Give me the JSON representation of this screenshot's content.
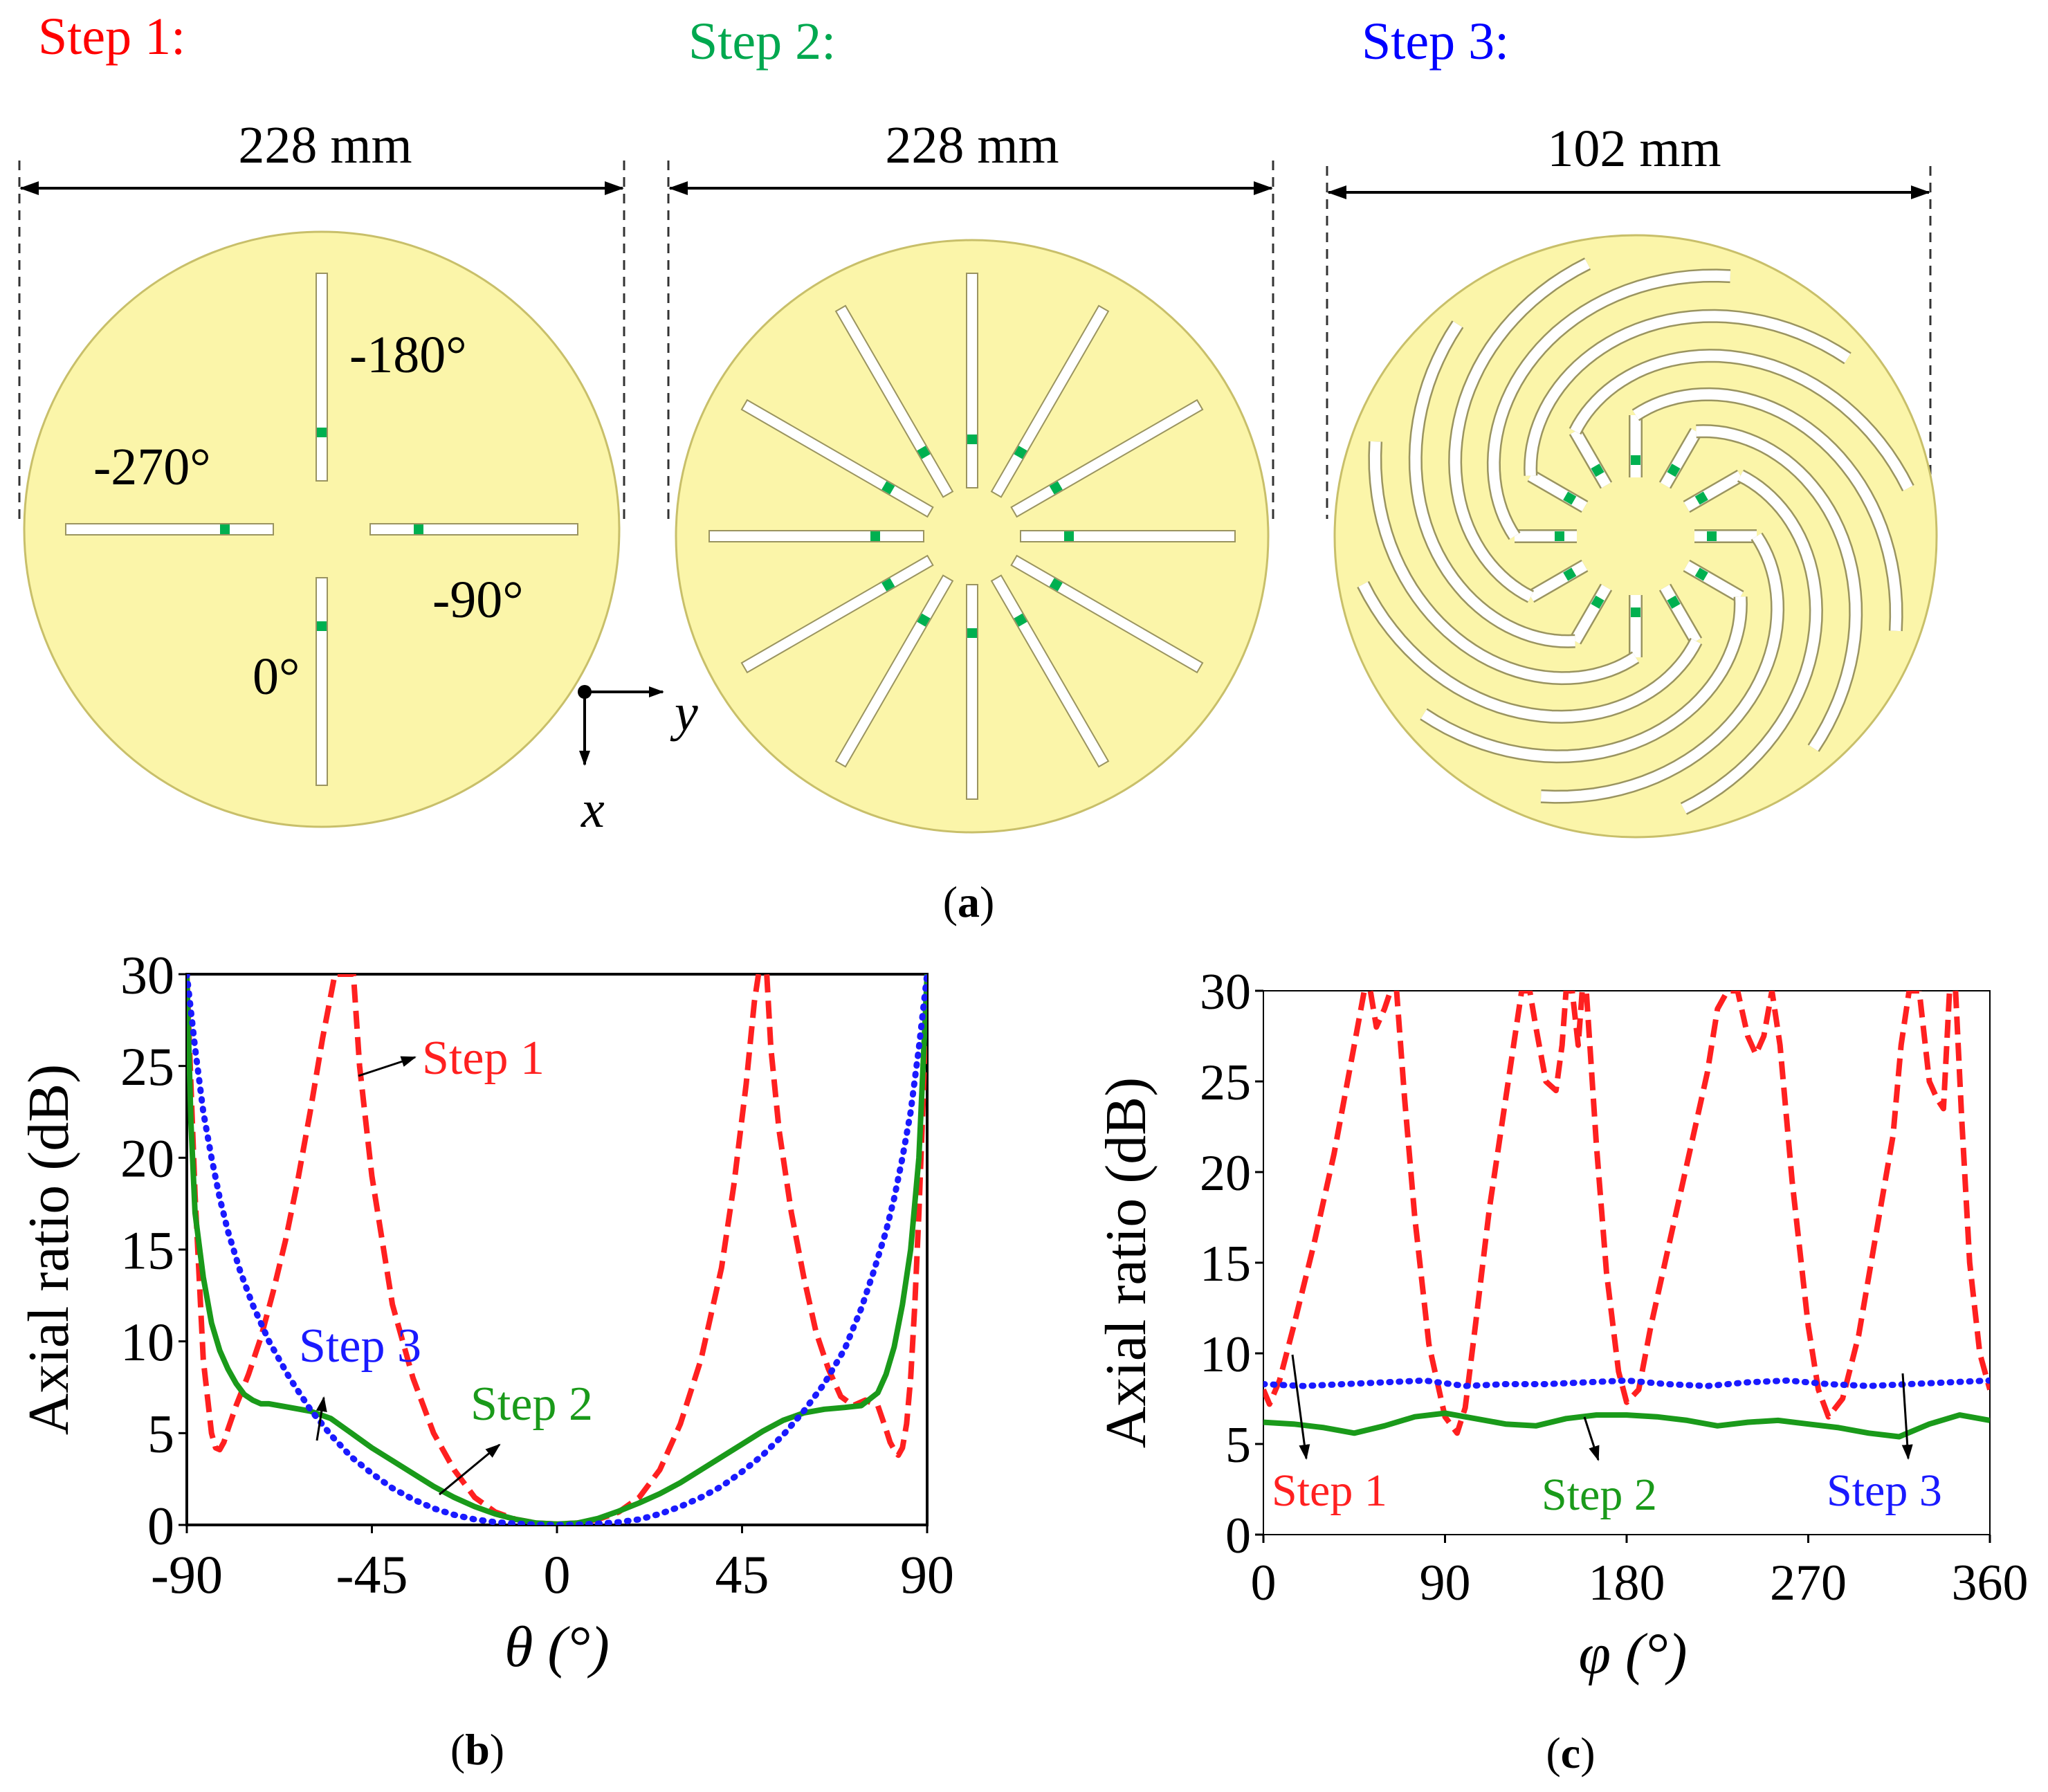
{
  "panels": {
    "a": {
      "caption_letter": "a",
      "steps": [
        {
          "label": "Step 1:",
          "color": "#ff0000",
          "width_label": "228 mm"
        },
        {
          "label": "Step 2:",
          "color": "#00a84f",
          "width_label": "228 mm"
        },
        {
          "label": "Step 3:",
          "color": "#0000ff",
          "width_label": "102 mm"
        }
      ],
      "step1_phase_labels": {
        "top": "-180°",
        "left": "-270°",
        "right": "-90°",
        "bottom": "0°"
      },
      "axis_labels": {
        "y": "y",
        "x": "x"
      }
    },
    "b": {
      "caption_letter": "b"
    },
    "c": {
      "caption_letter": "c"
    }
  },
  "colors": {
    "disk": "#fbf5a9",
    "disk_edge": "#c8bf6a",
    "slot": "#ffffff",
    "feed": "#00b050",
    "step1": "#ff2020",
    "step2": "#1a9a1a",
    "step3": "#1a1aff"
  },
  "chart_data": [
    {
      "type": "line",
      "panel": "b",
      "xlabel": "θ (°)",
      "ylabel": "Axial ratio (dB)",
      "xlim": [
        -90,
        90
      ],
      "ylim": [
        0,
        30
      ],
      "xticks": [
        "-90",
        "-45",
        "0",
        "45",
        "90"
      ],
      "yticks": [
        "0",
        "5",
        "10",
        "15",
        "20",
        "25",
        "30"
      ],
      "series": [
        {
          "name": "Step 1",
          "color": "#ff2020",
          "style": "dashed",
          "x": [
            -90,
            -88,
            -86,
            -84,
            -83,
            -82,
            -81,
            -80,
            -78,
            -75,
            -72,
            -69,
            -66,
            -63,
            -60,
            -57,
            -54,
            -52,
            -50.5,
            -49.5,
            -48,
            -45,
            -40,
            -35,
            -30,
            -25,
            -20,
            -15,
            -10,
            -5,
            0,
            5,
            10,
            15,
            20,
            25,
            30,
            35,
            40,
            43,
            46,
            48,
            49,
            49.5,
            50.5,
            51,
            52,
            54,
            57,
            60,
            63,
            66,
            69,
            72,
            75,
            78,
            80,
            81,
            82,
            83,
            84,
            85,
            86,
            87,
            88,
            89,
            90
          ],
          "y": [
            30,
            18,
            9,
            5,
            4.2,
            4.1,
            4.5,
            5.2,
            6.5,
            8.2,
            10.2,
            12.7,
            15.5,
            18.8,
            22.5,
            26.5,
            30,
            30,
            30,
            30,
            25,
            19,
            12,
            8,
            5,
            3,
            1.5,
            0.7,
            0.3,
            0.1,
            0.05,
            0.1,
            0.3,
            0.7,
            1.5,
            3,
            5.5,
            9,
            14,
            18.5,
            24,
            28.5,
            30,
            30,
            30,
            30,
            26,
            21.5,
            17,
            13.5,
            10.5,
            8.5,
            7,
            6.5,
            6.8,
            6.5,
            5.2,
            4.5,
            4.1,
            3.8,
            4.2,
            5.5,
            8,
            12,
            17,
            23,
            30
          ]
        },
        {
          "name": "Step 2",
          "color": "#1a9a1a",
          "style": "solid",
          "x": [
            -90,
            -89,
            -88,
            -86,
            -84,
            -82,
            -80,
            -78,
            -76,
            -74,
            -72,
            -70,
            -65,
            -60,
            -55,
            -50,
            -45,
            -40,
            -35,
            -30,
            -25,
            -20,
            -15,
            -10,
            -5,
            0,
            5,
            10,
            15,
            20,
            25,
            30,
            35,
            40,
            45,
            50,
            55,
            60,
            65,
            70,
            74,
            78,
            80,
            82,
            84,
            86,
            88,
            89,
            90
          ],
          "y": [
            30,
            22,
            17,
            13.5,
            11,
            9.5,
            8.5,
            7.7,
            7.1,
            6.8,
            6.6,
            6.6,
            6.4,
            6.2,
            5.8,
            5.0,
            4.2,
            3.5,
            2.8,
            2.1,
            1.5,
            1.0,
            0.6,
            0.3,
            0.1,
            0.05,
            0.1,
            0.35,
            0.75,
            1.2,
            1.7,
            2.3,
            3.0,
            3.7,
            4.4,
            5.1,
            5.7,
            6.1,
            6.3,
            6.4,
            6.5,
            7.2,
            8.2,
            9.7,
            12,
            15,
            20,
            25,
            30
          ]
        },
        {
          "name": "Step 3",
          "color": "#1a1aff",
          "style": "dotted",
          "x": [
            -90,
            -88,
            -86,
            -84,
            -82,
            -80,
            -77,
            -74,
            -70,
            -65,
            -60,
            -55,
            -50,
            -45,
            -40,
            -35,
            -30,
            -25,
            -20,
            -15,
            -10,
            -5,
            0,
            5,
            10,
            15,
            20,
            25,
            30,
            35,
            40,
            45,
            50,
            55,
            60,
            65,
            70,
            74,
            77,
            80,
            82,
            84,
            86,
            88,
            90
          ],
          "y": [
            30,
            26,
            22.5,
            20,
            17.8,
            16,
            13.8,
            12,
            10,
            8,
            6.3,
            4.9,
            3.7,
            2.8,
            2,
            1.4,
            0.9,
            0.55,
            0.3,
            0.15,
            0.07,
            0.02,
            0,
            0.02,
            0.07,
            0.15,
            0.3,
            0.6,
            1.0,
            1.5,
            2.1,
            2.9,
            3.8,
            4.9,
            6.2,
            7.7,
            9.6,
            11.8,
            13.8,
            16,
            17.8,
            20,
            22.5,
            26,
            30
          ]
        }
      ],
      "annotations": [
        "Step 1",
        "Step 3",
        "Step 2"
      ]
    },
    {
      "type": "line",
      "panel": "c",
      "xlabel": "φ (°)",
      "ylabel": "Axial ratio (dB)",
      "xlim": [
        0,
        360
      ],
      "ylim": [
        0,
        30
      ],
      "xticks": [
        "0",
        "90",
        "180",
        "270",
        "360"
      ],
      "yticks": [
        "0",
        "5",
        "10",
        "15",
        "20",
        "25",
        "30"
      ],
      "series": [
        {
          "name": "Step 1",
          "color": "#ff2020",
          "style": "dashed",
          "x": [
            0,
            3,
            8,
            15,
            25,
            35,
            45,
            50,
            53,
            56,
            60,
            63,
            66,
            70,
            75,
            82,
            90,
            96,
            100,
            105,
            112,
            120,
            128,
            132,
            135,
            140,
            145,
            148,
            150,
            153,
            156,
            158,
            160,
            165,
            170,
            176,
            180,
            186,
            192,
            200,
            210,
            220,
            225,
            230,
            235,
            240,
            244,
            248,
            252,
            256,
            262,
            270,
            275,
            280,
            287,
            295,
            305,
            312,
            316,
            320,
            325,
            330,
            334,
            337,
            340,
            343,
            346,
            350,
            355,
            360
          ],
          "y": [
            8,
            7.2,
            8.5,
            11.5,
            16,
            21,
            27,
            30,
            30,
            28,
            29,
            30,
            30,
            24,
            17.5,
            10.5,
            6.5,
            5.6,
            7,
            11.5,
            18,
            24,
            30,
            30,
            28,
            25,
            24.5,
            27,
            30,
            30,
            27,
            30,
            30,
            21.5,
            14.5,
            9,
            7.3,
            8,
            11.5,
            15.5,
            20.5,
            25.5,
            29,
            30,
            30,
            27.5,
            26.5,
            27.5,
            30,
            27,
            19.5,
            11.5,
            8,
            6.5,
            7.5,
            11,
            17.5,
            22,
            27,
            30,
            30,
            25,
            24,
            23.5,
            30,
            30,
            23,
            15,
            10,
            8
          ]
        },
        {
          "name": "Step 2",
          "color": "#1a9a1a",
          "style": "solid",
          "x": [
            0,
            15,
            30,
            45,
            60,
            75,
            90,
            105,
            120,
            135,
            150,
            165,
            180,
            195,
            210,
            225,
            240,
            255,
            270,
            285,
            300,
            315,
            330,
            345,
            360
          ],
          "y": [
            6.2,
            6.1,
            5.9,
            5.6,
            6.0,
            6.5,
            6.7,
            6.4,
            6.1,
            6.0,
            6.4,
            6.6,
            6.6,
            6.5,
            6.3,
            6.0,
            6.2,
            6.3,
            6.1,
            5.9,
            5.6,
            5.4,
            6.1,
            6.6,
            6.3
          ]
        },
        {
          "name": "Step 3",
          "color": "#1a1aff",
          "style": "dotted",
          "x": [
            0,
            20,
            40,
            60,
            80,
            100,
            120,
            140,
            160,
            180,
            200,
            220,
            240,
            260,
            280,
            300,
            320,
            340,
            360
          ],
          "y": [
            8.3,
            8.2,
            8.3,
            8.4,
            8.5,
            8.2,
            8.3,
            8.3,
            8.4,
            8.5,
            8.3,
            8.2,
            8.4,
            8.5,
            8.3,
            8.2,
            8.3,
            8.4,
            8.5
          ]
        }
      ],
      "annotations": [
        "Step 1",
        "Step 2",
        "Step 3"
      ]
    }
  ]
}
